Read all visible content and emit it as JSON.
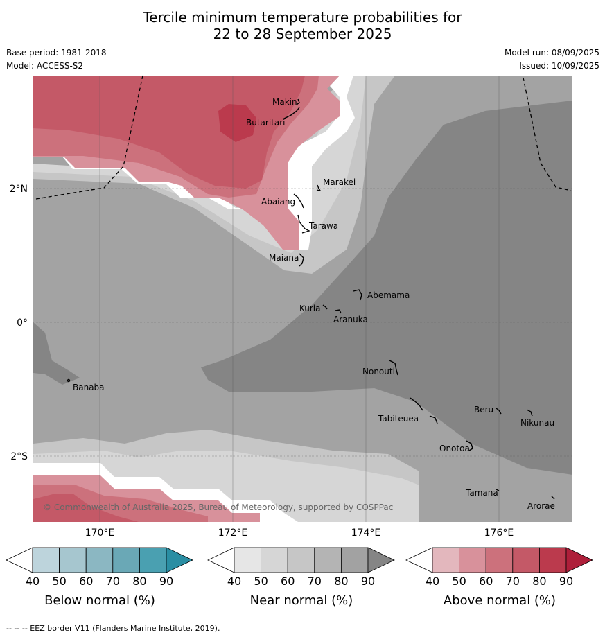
{
  "title": {
    "line1": "Tercile minimum temperature probabilities for",
    "line2": "22 to 28 September 2025"
  },
  "meta": {
    "base_period": "Base period: 1981-2018",
    "model": "Model: ACCESS-S2",
    "model_run": "Model run: 08/09/2025",
    "issued": "Issued: 10/09/2025"
  },
  "map": {
    "lat_labels": [
      "2°N",
      "0°",
      "2°S"
    ],
    "lon_labels": [
      "170°E",
      "172°E",
      "174°E",
      "176°E"
    ],
    "places": [
      {
        "name": "Makin",
        "kind": "island"
      },
      {
        "name": "Butaritari",
        "kind": "island"
      },
      {
        "name": "Marakei",
        "kind": "island"
      },
      {
        "name": "Abaiang",
        "kind": "island"
      },
      {
        "name": "Tarawa",
        "kind": "island"
      },
      {
        "name": "Maiana",
        "kind": "island"
      },
      {
        "name": "Abemama",
        "kind": "island"
      },
      {
        "name": "Kuria",
        "kind": "island"
      },
      {
        "name": "Aranuka",
        "kind": "island"
      },
      {
        "name": "Banaba",
        "kind": "island"
      },
      {
        "name": "Nonouti",
        "kind": "island"
      },
      {
        "name": "Tabiteuea",
        "kind": "island"
      },
      {
        "name": "Beru",
        "kind": "island"
      },
      {
        "name": "Nikunau",
        "kind": "island"
      },
      {
        "name": "Onotoa",
        "kind": "island"
      },
      {
        "name": "Tamana",
        "kind": "island"
      },
      {
        "name": "Arorae",
        "kind": "island"
      }
    ],
    "copyright": "© Commonwealth of Australia 2025, Bureau of Meteorology, supported by COSPPac"
  },
  "colorbars": [
    {
      "label": "Below normal (%)",
      "ticks": [
        "40",
        "50",
        "60",
        "70",
        "80",
        "90"
      ],
      "colors": [
        "#ffffff",
        "#bdd4dc",
        "#a6c6cf",
        "#8bb7c2",
        "#6aa8b6",
        "#4aa0b1",
        "#2a8ea3"
      ]
    },
    {
      "label": "Near normal (%)",
      "ticks": [
        "40",
        "50",
        "60",
        "70",
        "80",
        "90"
      ],
      "colors": [
        "#ffffff",
        "#e6e6e6",
        "#d6d6d6",
        "#c6c6c6",
        "#b4b4b4",
        "#a2a2a2",
        "#858585"
      ]
    },
    {
      "label": "Above normal (%)",
      "ticks": [
        "40",
        "50",
        "60",
        "70",
        "80",
        "90"
      ],
      "colors": [
        "#ffffff",
        "#e3b7bd",
        "#d8919b",
        "#cc717c",
        "#c45967",
        "#bb3a4d",
        "#ae1f3a"
      ]
    }
  ],
  "footer": "-- -- -- EEZ border V11 (Flanders Marine Institute, 2019)."
}
